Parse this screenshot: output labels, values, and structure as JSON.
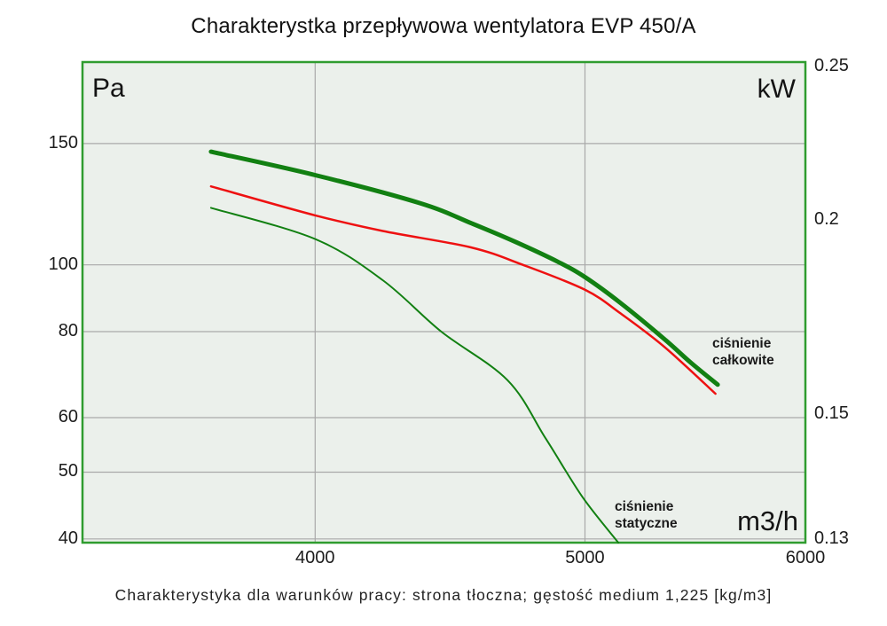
{
  "title": "Charakterystka przepływowa wentylatora EVP 450/A",
  "caption": "Charakterystyka dla warunków pracy: strona tłoczna; gęstość medium 1,225 [kg/m3]",
  "units": {
    "left_pressure": "Pa",
    "right_power": "kW",
    "flow": "m3/h"
  },
  "annotations": {
    "total_pressure": {
      "line1": "ciśnienie",
      "line2": "całkowite"
    },
    "static_pressure": {
      "line1": "ciśnienie",
      "line2": "statyczne"
    }
  },
  "colors": {
    "plot_background": "#ebf0eb",
    "plot_border": "#2f9c2f",
    "gridline": "#a9a9a9",
    "green_curve": "#128012",
    "red_curve": "#ee1111",
    "text": "#1a1a1a"
  },
  "chart_data": {
    "type": "line",
    "title": "Charakterystka przepływowa wentylatora EVP 450/A",
    "xlabel": "m3/h",
    "ylabel_left": "Pa",
    "ylabel_right": "kW",
    "x_scale": "log",
    "y_scale": "log",
    "xlim": [
      3300,
      6000
    ],
    "ylim_left": [
      39.5,
      197
    ],
    "x_ticks": [
      4000,
      5000,
      6000
    ],
    "y_ticks_left": [
      150,
      100,
      80,
      60,
      50,
      40
    ],
    "y_ticks_right": [
      {
        "label": "0.25",
        "pos": 0.009
      },
      {
        "label": "0.2",
        "pos": 0.328
      },
      {
        "label": "0.15",
        "pos": 0.732
      },
      {
        "label": "0.13",
        "pos": 0.993
      }
    ],
    "grid": true,
    "legend_position": "labels-on-chart",
    "series": [
      {
        "name": "ciśnienie całkowite",
        "color": "#128012",
        "stroke_width": 5,
        "x_m3h": [
          3670,
          4000,
          4360,
          4550,
          4720,
          4890,
          5000,
          5150,
          5340,
          5460,
          5580
        ],
        "y_pa": [
          146,
          135,
          123,
          115,
          108,
          101,
          96,
          88,
          78,
          72,
          67
        ]
      },
      {
        "name": "",
        "color": "#ee1111",
        "stroke_width": 2.5,
        "x_m3h": [
          3670,
          4000,
          4230,
          4550,
          4750,
          5000,
          5150,
          5340,
          5570
        ],
        "y_pa": [
          130,
          118,
          112,
          106,
          100,
          92,
          85,
          76,
          65
        ]
      },
      {
        "name": "ciśnienie statyczne",
        "color": "#128012",
        "stroke_width": 2,
        "x_m3h": [
          3670,
          4000,
          4230,
          4440,
          4690,
          4840,
          4990,
          5140
        ],
        "y_pa": [
          121,
          109,
          95,
          80,
          68,
          56,
          46,
          39.5
        ]
      }
    ]
  }
}
